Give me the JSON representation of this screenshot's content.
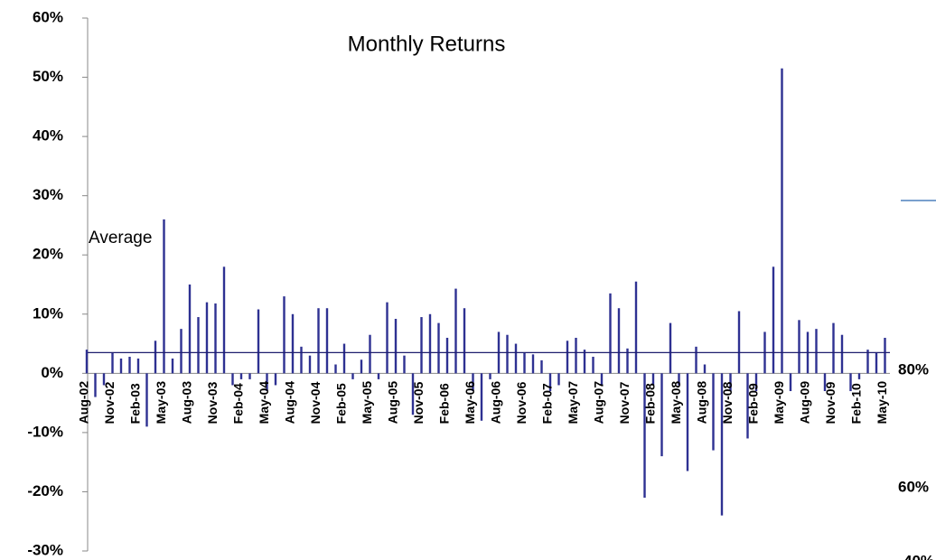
{
  "chart_data": {
    "type": "bar",
    "title": "Monthly Returns",
    "categories": [
      "Aug-02",
      null,
      null,
      "Nov-02",
      null,
      null,
      "Feb-03",
      null,
      null,
      "May-03",
      null,
      null,
      "Aug-03",
      null,
      null,
      "Nov-03",
      null,
      null,
      "Feb-04",
      null,
      null,
      "May-04",
      null,
      null,
      "Aug-04",
      null,
      null,
      "Nov-04",
      null,
      null,
      "Feb-05",
      null,
      null,
      "May-05",
      null,
      null,
      "Aug-05",
      null,
      null,
      "Nov-05",
      null,
      null,
      "Feb-06",
      null,
      null,
      "May-06",
      null,
      null,
      "Aug-06",
      null,
      null,
      "Nov-06",
      null,
      null,
      "Feb-07",
      null,
      null,
      "May-07",
      null,
      null,
      "Aug-07",
      null,
      null,
      "Nov-07",
      null,
      null,
      "Feb-08",
      null,
      null,
      "May-08",
      null,
      null,
      "Aug-08",
      null,
      null,
      "Nov-08",
      null,
      null,
      "Feb-09",
      null,
      null,
      "May-09",
      null,
      null,
      "Aug-09",
      null,
      null,
      "Nov-09",
      null,
      null,
      "Feb-10",
      null,
      null,
      "May-10"
    ],
    "values": [
      4,
      -4,
      -2,
      3.5,
      2.5,
      2.8,
      2.5,
      -9,
      5.5,
      26,
      2.5,
      7.5,
      15,
      9.5,
      12,
      11.8,
      18,
      -2,
      -1,
      -1,
      10.8,
      -3,
      -2,
      13,
      10,
      4.5,
      3,
      11,
      11,
      1.5,
      5,
      -1,
      2.3,
      6.5,
      -1,
      12,
      9.2,
      3,
      -7,
      9.5,
      10,
      8.5,
      6,
      14.3,
      11,
      -3,
      -8,
      -1,
      7,
      6.5,
      5,
      3.5,
      3.2,
      2.2,
      -3,
      -2,
      5.5,
      6,
      4,
      2.8,
      -2,
      13.5,
      11,
      4.2,
      15.5,
      -21,
      -2,
      -14,
      8.5,
      -2,
      -16.5,
      4.5,
      1.5,
      -13,
      -24,
      -3,
      10.5,
      -11,
      -3,
      7,
      18,
      51.5,
      -3,
      9,
      7,
      7.5,
      -3,
      8.5,
      6.5,
      -3,
      -1,
      4,
      3.5,
      6
    ],
    "color": "#2e3192",
    "average": 3.5,
    "average_label": "Average",
    "ylim": [
      -30,
      60
    ],
    "yticks": [
      {
        "value": -30,
        "label": "-30%"
      },
      {
        "value": -20,
        "label": "-20%"
      },
      {
        "value": -10,
        "label": "-10%"
      },
      {
        "value": 0,
        "label": "0%"
      },
      {
        "value": 10,
        "label": "10%"
      },
      {
        "value": 20,
        "label": "20%"
      },
      {
        "value": 30,
        "label": "30%"
      },
      {
        "value": 40,
        "label": "40%"
      },
      {
        "value": 50,
        "label": "50%"
      },
      {
        "value": 60,
        "label": "60%"
      }
    ],
    "clipped_axis_labels": [
      "80%",
      "60%",
      "40%"
    ]
  }
}
